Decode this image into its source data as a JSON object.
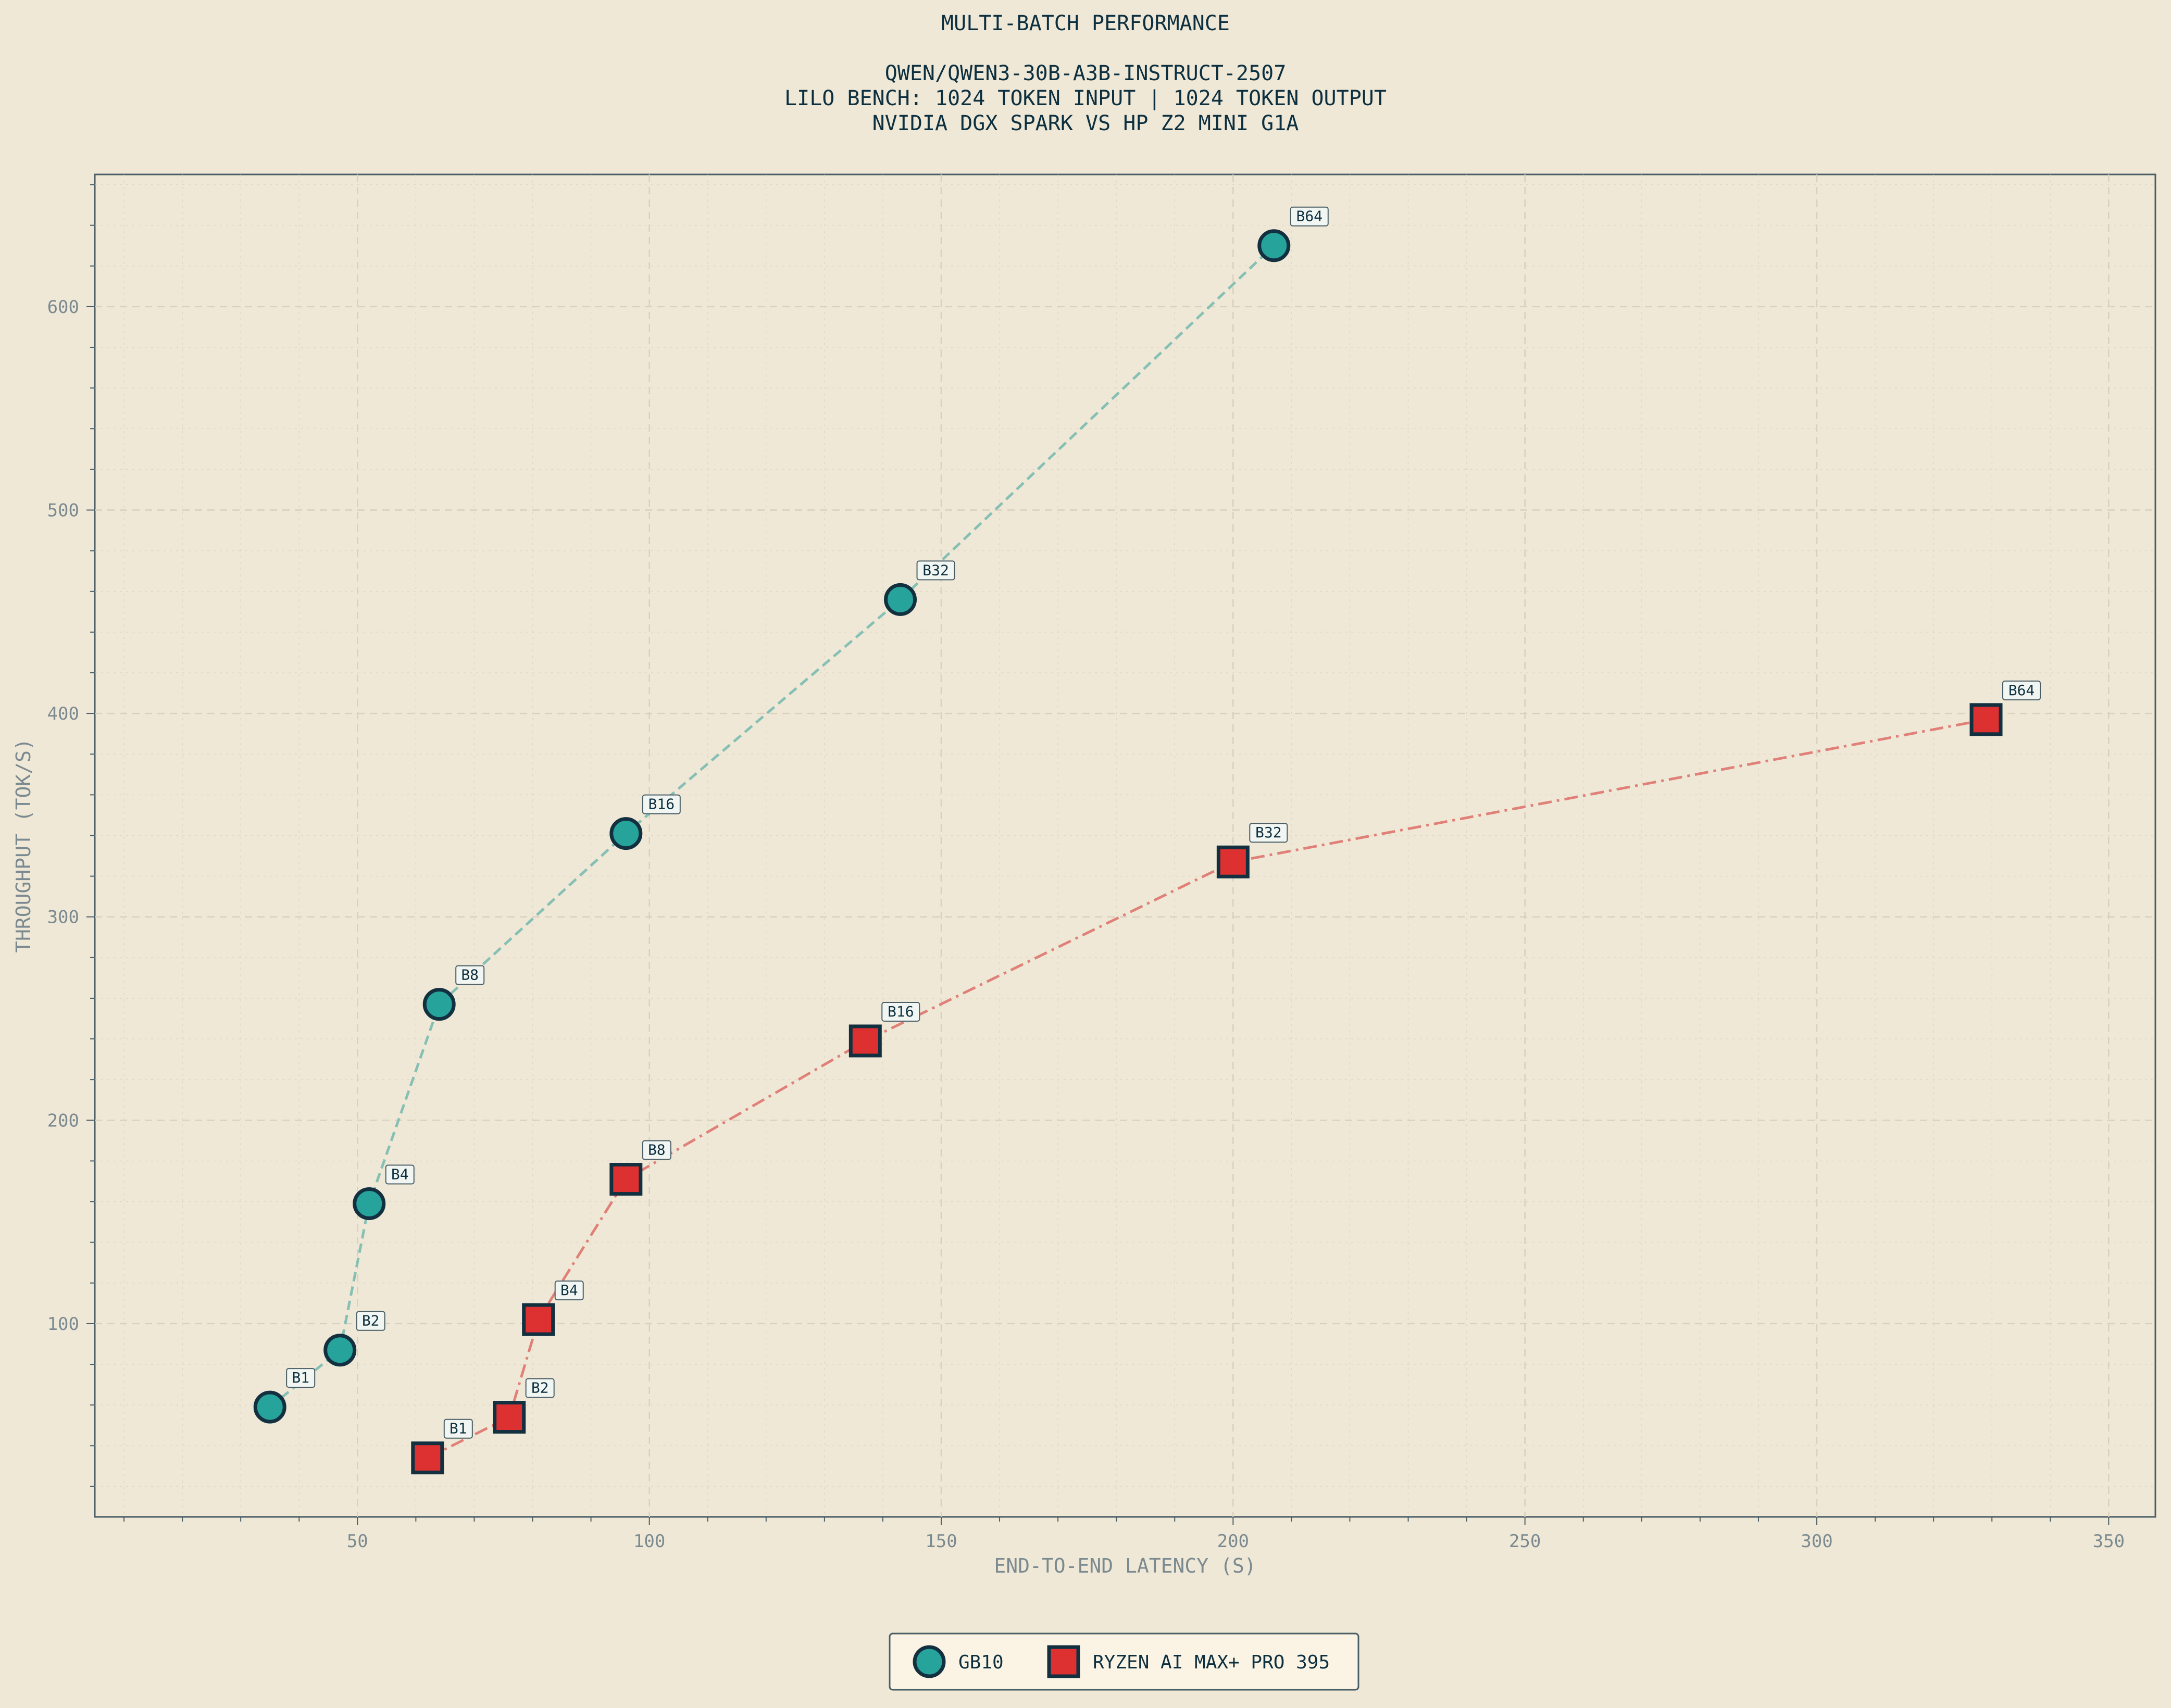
{
  "colors": {
    "background": "#f0e8d6",
    "grid": "#d8cfbc",
    "axis_text": "#7a8a90",
    "title_text": "#0d3040",
    "gb10_fill": "#26a39a",
    "gb10_line": "#86c0b4",
    "ryzen_fill": "#dd3030",
    "ryzen_line": "#e08078",
    "marker_edge": "#123040",
    "legend_bg": "#fbf4e4"
  },
  "chart_data": {
    "type": "scatter",
    "title": "MULTI-BATCH PERFORMANCE",
    "subtitle_lines": [
      "QWEN/QWEN3-30B-A3B-INSTRUCT-2507",
      "LILO BENCH: 1024 TOKEN INPUT | 1024 TOKEN OUTPUT",
      "NVIDIA DGX SPARK VS HP Z2 MINI G1A"
    ],
    "xlabel": "END-TO-END LATENCY (S)",
    "ylabel": "THROUGHPUT (TOK/S)",
    "xlim": [
      5,
      358
    ],
    "ylim": [
      5,
      665
    ],
    "x_ticks": [
      50,
      100,
      150,
      200,
      250,
      300,
      350
    ],
    "y_ticks": [
      100,
      200,
      300,
      400,
      500,
      600
    ],
    "grid": true,
    "legend_position": "bottom-center",
    "series": [
      {
        "name": "GB10",
        "marker": "circle",
        "line_style": "dashed",
        "points": [
          {
            "label": "B1",
            "x": 35,
            "y": 59
          },
          {
            "label": "B2",
            "x": 47,
            "y": 87
          },
          {
            "label": "B4",
            "x": 52,
            "y": 159
          },
          {
            "label": "B8",
            "x": 64,
            "y": 257
          },
          {
            "label": "B16",
            "x": 96,
            "y": 341
          },
          {
            "label": "B32",
            "x": 143,
            "y": 456
          },
          {
            "label": "B64",
            "x": 207,
            "y": 630
          }
        ]
      },
      {
        "name": "RYZEN AI MAX+ PRO 395",
        "marker": "square",
        "line_style": "dashdot",
        "points": [
          {
            "label": "B1",
            "x": 62,
            "y": 34
          },
          {
            "label": "B2",
            "x": 76,
            "y": 54
          },
          {
            "label": "B4",
            "x": 81,
            "y": 102
          },
          {
            "label": "B8",
            "x": 96,
            "y": 171
          },
          {
            "label": "B16",
            "x": 137,
            "y": 239
          },
          {
            "label": "B32",
            "x": 200,
            "y": 327
          },
          {
            "label": "B64",
            "x": 329,
            "y": 397
          }
        ]
      }
    ]
  }
}
